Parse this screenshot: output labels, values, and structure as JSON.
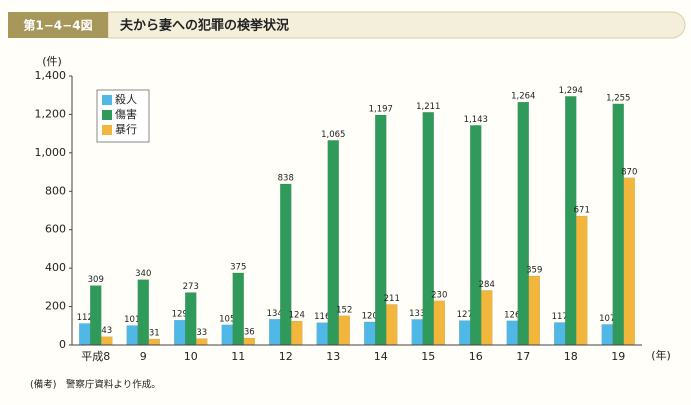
{
  "header": {
    "label": "第1−4−4図",
    "title": "夫から妻への犯罪の検挙状況"
  },
  "note": "(備考)　警察庁資料より作成。",
  "chart_data": {
    "type": "bar",
    "y_unit": "(件)",
    "x_unit": "(年)",
    "categories": [
      "平成8",
      "9",
      "10",
      "11",
      "12",
      "13",
      "14",
      "15",
      "16",
      "17",
      "18",
      "19"
    ],
    "series": [
      {
        "name": "殺人",
        "color": "#4fb8e6",
        "values": [
          112,
          101,
          129,
          105,
          134,
          116,
          120,
          133,
          127,
          126,
          117,
          107
        ]
      },
      {
        "name": "傷害",
        "color": "#2f9a5a",
        "values": [
          309,
          340,
          273,
          375,
          838,
          1065,
          1197,
          1211,
          1143,
          1264,
          1294,
          1255
        ],
        "value_labels": [
          "309",
          "340",
          "273",
          "375",
          "838",
          "1,065",
          "1,197",
          "1,211",
          "1,143",
          "1,264",
          "1,294",
          "1,255"
        ]
      },
      {
        "name": "暴行",
        "color": "#f2b63c",
        "values": [
          43,
          31,
          33,
          36,
          124,
          152,
          211,
          230,
          284,
          359,
          671,
          870
        ]
      }
    ],
    "ylim": [
      0,
      1400
    ],
    "yticks": [
      0,
      200,
      400,
      600,
      800,
      {
        "value": 1000,
        "label": "1,000"
      },
      {
        "value": 1200,
        "label": "1,200"
      },
      {
        "value": 1400,
        "label": "1,400"
      }
    ],
    "grid": false,
    "legend": "upper-left"
  }
}
